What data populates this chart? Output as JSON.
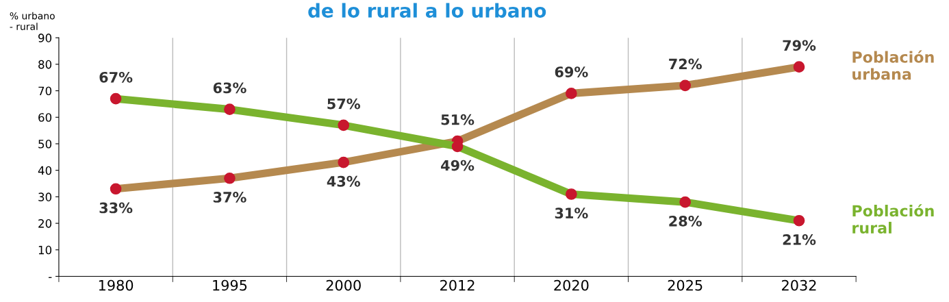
{
  "chart_data": {
    "type": "line",
    "title": "de lo rural a lo urbano",
    "ylabel": "% urbano\n- rural",
    "categories": [
      "1980",
      "1995",
      "2000",
      "2012",
      "2020",
      "2025",
      "2032"
    ],
    "series": [
      {
        "name": "Población urbana",
        "color": "#b5894f",
        "values": [
          33,
          37,
          43,
          51,
          69,
          72,
          79
        ],
        "value_labels": [
          "33%",
          "37%",
          "43%",
          "51%",
          "69%",
          "72%",
          "79%"
        ]
      },
      {
        "name": "Población rural",
        "color": "#7ab32e",
        "values": [
          67,
          63,
          57,
          49,
          31,
          28,
          21
        ],
        "value_labels": [
          "67%",
          "63%",
          "57%",
          "49%",
          "31%",
          "28%",
          "21%"
        ]
      }
    ],
    "ylim": [
      0,
      90
    ],
    "yticks": [
      {
        "value": 0,
        "label": "-"
      },
      10,
      20,
      30,
      40,
      50,
      60,
      70,
      80,
      90
    ],
    "grid": "x",
    "legend": false,
    "marker": "circle"
  }
}
